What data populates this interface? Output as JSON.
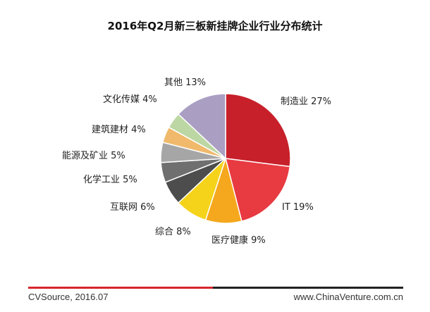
{
  "chart_data": {
    "type": "pie",
    "title": "2016年Q2月新三板新挂牌企业行业分布统计",
    "slices": [
      {
        "label": "制造业 27%",
        "value": 27,
        "color": "#c8202a"
      },
      {
        "label": "IT 19%",
        "value": 19,
        "color": "#e83a41"
      },
      {
        "label": "医疗健康 9%",
        "value": 9,
        "color": "#f5a81d"
      },
      {
        "label": "综合 8%",
        "value": 8,
        "color": "#f5d31a"
      },
      {
        "label": "互联网 6%",
        "value": 6,
        "color": "#4d4d4d"
      },
      {
        "label": "化学工业 5%",
        "value": 5,
        "color": "#6f6f6f"
      },
      {
        "label": "能源及矿业 5%",
        "value": 5,
        "color": "#a6a6a6"
      },
      {
        "label": "建筑建材 4%",
        "value": 4,
        "color": "#f0b96b"
      },
      {
        "label": "文化传媒 4%",
        "value": 4,
        "color": "#bcd7a3"
      },
      {
        "label": "其他 13%",
        "value": 13,
        "color": "#aa9fc3"
      }
    ]
  },
  "footer": {
    "source": "CVSource, 2016.07",
    "site": "www.ChinaVenture.com.cn"
  }
}
